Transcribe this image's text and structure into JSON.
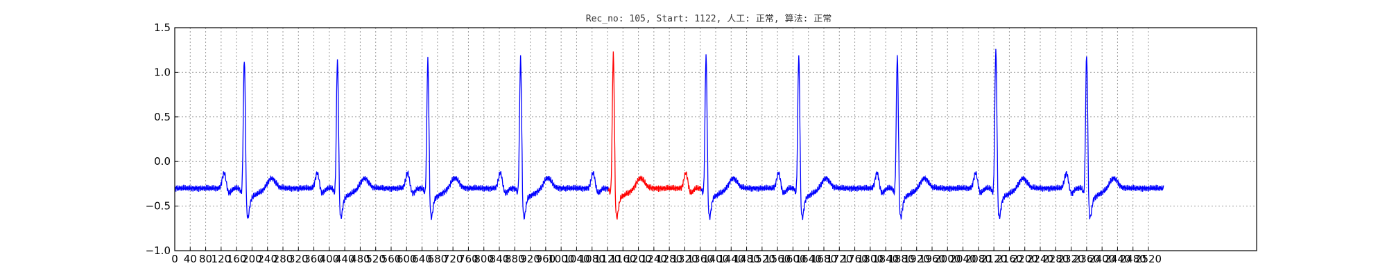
{
  "chart_data": {
    "type": "line",
    "title": "Rec_no: 105, Start: 1122, 人工: 正常, 算法: 正常",
    "xlabel": "",
    "ylabel": "",
    "xlim": [
      0,
      2800
    ],
    "ylim": [
      -1.0,
      1.5
    ],
    "grid": true,
    "x_ticks": [
      0,
      40,
      80,
      120,
      160,
      200,
      240,
      280,
      320,
      360,
      400,
      440,
      480,
      520,
      560,
      600,
      640,
      680,
      720,
      760,
      800,
      840,
      880,
      920,
      960,
      1000,
      1040,
      1080,
      1120,
      1160,
      1200,
      1240,
      1280,
      1320,
      1360,
      1400,
      1440,
      1480,
      1520,
      1560,
      1600,
      1640,
      1680,
      1720,
      1760,
      1800,
      1840,
      1880,
      1920,
      1960,
      2000,
      2040,
      2080,
      2120,
      2160,
      2200,
      2240,
      2280,
      2320,
      2360,
      2400,
      2440,
      2480,
      2520
    ],
    "y_ticks": [
      -1.0,
      -0.5,
      0.0,
      0.5,
      1.0,
      1.5
    ],
    "y_tick_labels": [
      "−1.0",
      "−0.5",
      "0.0",
      "0.5",
      "1.0",
      "1.5"
    ],
    "signal_length": 2560,
    "highlight_range": [
      1122,
      1362
    ],
    "beats": [
      {
        "r": 180,
        "peak": 1.18
      },
      {
        "r": 421,
        "peak": 1.17
      },
      {
        "r": 655,
        "peak": 1.16
      },
      {
        "r": 895,
        "peak": 1.18
      },
      {
        "r": 1135,
        "peak": 1.23
      },
      {
        "r": 1375,
        "peak": 1.21
      },
      {
        "r": 1615,
        "peak": 1.21
      },
      {
        "r": 1870,
        "peak": 1.21
      },
      {
        "r": 2125,
        "peak": 1.28
      },
      {
        "r": 2360,
        "peak": 1.22
      }
    ],
    "series": [
      {
        "role": "normal",
        "color": "#0000ff"
      },
      {
        "role": "highlight",
        "color": "#ff0000"
      }
    ]
  }
}
